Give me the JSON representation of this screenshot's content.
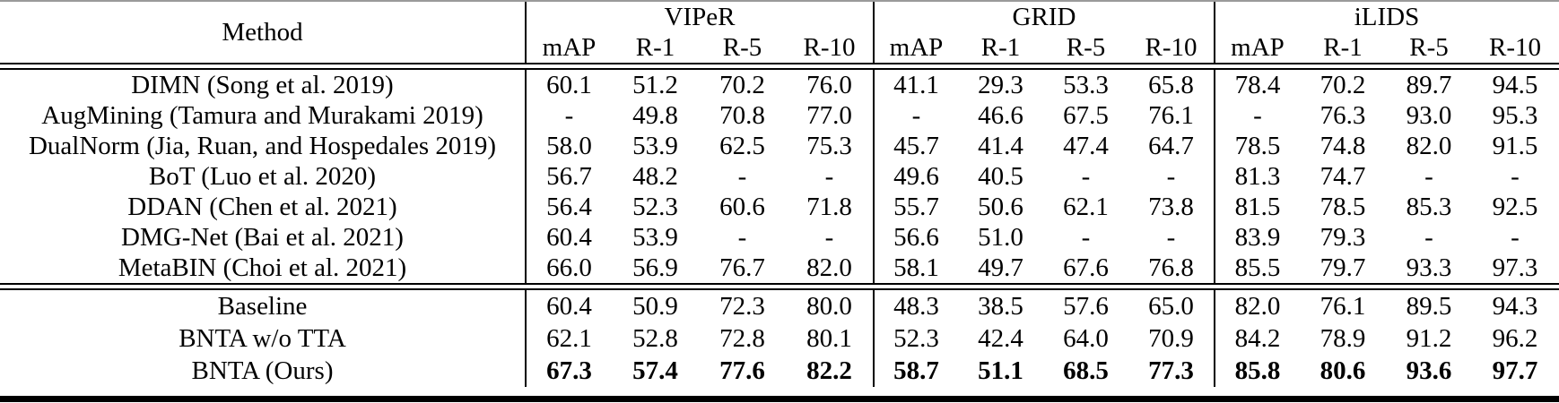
{
  "table": {
    "header": {
      "method": "Method",
      "groups": [
        {
          "label": "VIPeR",
          "cols": [
            "mAP",
            "R-1",
            "R-5",
            "R-10"
          ]
        },
        {
          "label": "GRID",
          "cols": [
            "mAP",
            "R-1",
            "R-5",
            "R-10"
          ]
        },
        {
          "label": "iLIDS",
          "cols": [
            "mAP",
            "R-1",
            "R-5",
            "R-10"
          ]
        }
      ]
    },
    "sections": [
      {
        "rows": [
          {
            "method": "DIMN (Song et al. 2019)",
            "bold": false,
            "values": [
              "60.1",
              "51.2",
              "70.2",
              "76.0",
              "41.1",
              "29.3",
              "53.3",
              "65.8",
              "78.4",
              "70.2",
              "89.7",
              "94.5"
            ]
          },
          {
            "method": "AugMining (Tamura and Murakami 2019)",
            "bold": false,
            "values": [
              "-",
              "49.8",
              "70.8",
              "77.0",
              "-",
              "46.6",
              "67.5",
              "76.1",
              "-",
              "76.3",
              "93.0",
              "95.3"
            ]
          },
          {
            "method": "DualNorm (Jia, Ruan, and Hospedales 2019)",
            "bold": false,
            "values": [
              "58.0",
              "53.9",
              "62.5",
              "75.3",
              "45.7",
              "41.4",
              "47.4",
              "64.7",
              "78.5",
              "74.8",
              "82.0",
              "91.5"
            ]
          },
          {
            "method": "BoT (Luo et al. 2020)",
            "bold": false,
            "values": [
              "56.7",
              "48.2",
              "-",
              "-",
              "49.6",
              "40.5",
              "-",
              "-",
              "81.3",
              "74.7",
              "-",
              "-"
            ]
          },
          {
            "method": "DDAN (Chen et al. 2021)",
            "bold": false,
            "values": [
              "56.4",
              "52.3",
              "60.6",
              "71.8",
              "55.7",
              "50.6",
              "62.1",
              "73.8",
              "81.5",
              "78.5",
              "85.3",
              "92.5"
            ]
          },
          {
            "method": "DMG-Net (Bai et al. 2021)",
            "bold": false,
            "values": [
              "60.4",
              "53.9",
              "-",
              "-",
              "56.6",
              "51.0",
              "-",
              "-",
              "83.9",
              "79.3",
              "-",
              "-"
            ]
          },
          {
            "method": "MetaBIN (Choi et al. 2021)",
            "bold": false,
            "values": [
              "66.0",
              "56.9",
              "76.7",
              "82.0",
              "58.1",
              "49.7",
              "67.6",
              "76.8",
              "85.5",
              "79.7",
              "93.3",
              "97.3"
            ]
          }
        ]
      },
      {
        "rows": [
          {
            "method": "Baseline",
            "bold": false,
            "values": [
              "60.4",
              "50.9",
              "72.3",
              "80.0",
              "48.3",
              "38.5",
              "57.6",
              "65.0",
              "82.0",
              "76.1",
              "89.5",
              "94.3"
            ]
          },
          {
            "method": "BNTA w/o TTA",
            "bold": false,
            "values": [
              "62.1",
              "52.8",
              "72.8",
              "80.1",
              "52.3",
              "42.4",
              "64.0",
              "70.9",
              "84.2",
              "78.9",
              "91.2",
              "96.2"
            ]
          },
          {
            "method": "BNTA (Ours)",
            "bold": true,
            "values": [
              "67.3",
              "57.4",
              "77.6",
              "82.2",
              "58.7",
              "51.1",
              "68.5",
              "77.3",
              "85.8",
              "80.6",
              "93.6",
              "97.7"
            ]
          }
        ]
      }
    ],
    "colors": {
      "text": "#000000",
      "background": "#ffffff",
      "rule": "#000000"
    }
  }
}
